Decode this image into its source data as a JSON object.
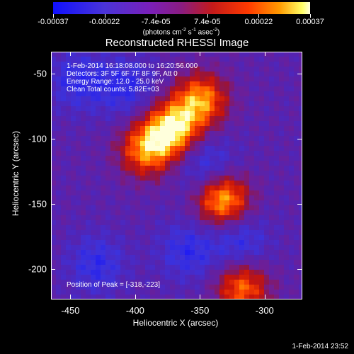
{
  "colorbar": {
    "ticks": [
      "-0.00037",
      "-0.00022",
      "-7.4e-05",
      "7.4e-05",
      "0.00022",
      "0.00037"
    ],
    "units_text": "(photons cm",
    "units_exp1": "-2",
    "units_mid": " s",
    "units_exp2": "-1",
    "units_end": " asec",
    "units_exp3": "-2",
    "units_close": ")"
  },
  "title": "Reconstructed RHESSI Image",
  "annotations": {
    "time_range": "1-Feb-2014 16:18:08.000 to 16:20:56.000",
    "detectors": "Detectors: 3F 5F 6F 7F 8F 9F, Att 0",
    "energy": "Energy Range: 12.0 - 25.0 keV",
    "clean": "Clean     Total counts: 5.82E+03",
    "peak": "Position of Peak = [-318,-223]"
  },
  "axes": {
    "xlabel": "Heliocentric X (arcsec)",
    "ylabel": "Heliocentric Y (arcsec)",
    "xticks": [
      "-450",
      "-400",
      "-350",
      "-300"
    ],
    "yticks": [
      "-50",
      "-100",
      "-150",
      "-200"
    ]
  },
  "footer_timestamp": "1-Feb-2014 23:52",
  "chart_data": {
    "type": "heatmap",
    "title": "Reconstructed RHESSI Image",
    "xlabel": "Heliocentric X (arcsec)",
    "ylabel": "Heliocentric Y (arcsec)",
    "xlim": [
      -465,
      -272
    ],
    "ylim": [
      -222,
      -33
    ],
    "xticks": [
      -450,
      -400,
      -350,
      -300
    ],
    "yticks": [
      -50,
      -100,
      -150,
      -200
    ],
    "colorbar_range": [
      -0.00037,
      0.00037
    ],
    "colorbar_ticks": [
      -0.00037,
      -0.00022,
      -7.4e-05,
      7.4e-05,
      0.00022,
      0.00037
    ],
    "peak_position": [
      -318,
      -223
    ],
    "sources": [
      {
        "x": -372,
        "y": -92,
        "level": 0.95
      },
      {
        "x": -350,
        "y": -70,
        "level": 0.8
      },
      {
        "x": -392,
        "y": -108,
        "level": 0.75
      },
      {
        "x": -333,
        "y": -146,
        "level": 0.9
      },
      {
        "x": -318,
        "y": -213,
        "level": 0.7
      }
    ],
    "colors": {
      "low": "#1010ff",
      "mid": "#7a1fb8",
      "high": "#ffffe0"
    }
  }
}
